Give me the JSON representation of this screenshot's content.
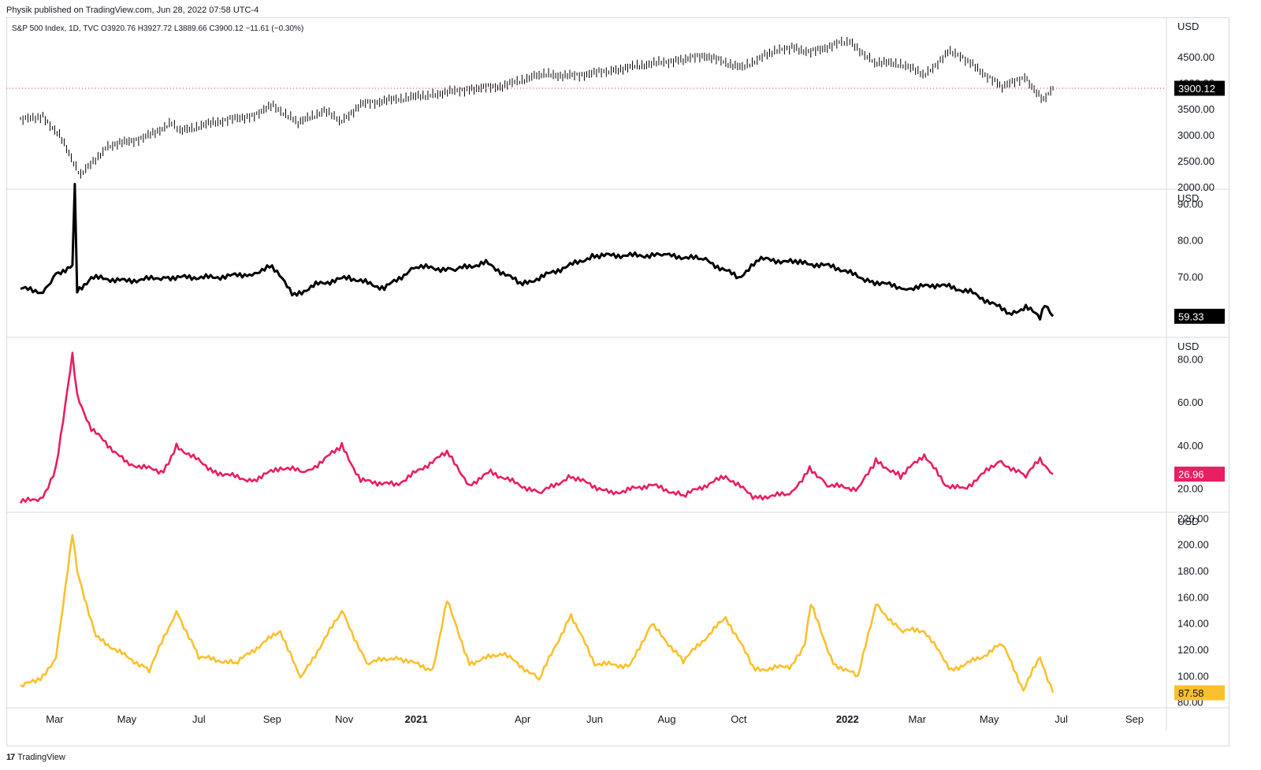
{
  "header": {
    "publisher_line": "Physik published on TradingView.com, Jun 28, 2022 07:58 UTC-4",
    "symbol_line": "S&P 500 Index, 1D, TVC  O3920.76  H3927.72  L3889.66  C3900.12  −11.61 (−0.30%)"
  },
  "footer": {
    "logo_text": "TradingView",
    "logo_mark": "17"
  },
  "colors": {
    "candles": "#000000",
    "line2": "#000000",
    "line3": "#e91e63",
    "line4": "#fbc02d",
    "grid": "#d6d9e0"
  },
  "time_axis": {
    "labels": [
      "Mar",
      "May",
      "Jul",
      "Sep",
      "Nov",
      "2021",
      "Apr",
      "Jun",
      "Aug",
      "Oct",
      "2022",
      "Mar",
      "May",
      "Jul",
      "Sep"
    ],
    "bold": [
      "2021",
      "2022"
    ]
  },
  "chart_data": [
    {
      "type": "candlestick",
      "title": "S&P 500 Index, 1D, TVC",
      "currency": "USD",
      "x": [
        "2020-02-01",
        "2020-02-20",
        "2020-03-05",
        "2020-03-23",
        "2020-04-15",
        "2020-05-15",
        "2020-06-08",
        "2020-06-15",
        "2020-07-15",
        "2020-08-15",
        "2020-09-02",
        "2020-09-23",
        "2020-10-15",
        "2020-10-30",
        "2020-11-15",
        "2020-12-15",
        "2021-01-15",
        "2021-02-15",
        "2021-03-15",
        "2021-04-15",
        "2021-05-15",
        "2021-06-15",
        "2021-07-15",
        "2021-08-15",
        "2021-09-02",
        "2021-10-04",
        "2021-10-25",
        "2021-11-15",
        "2021-12-01",
        "2021-12-27",
        "2022-01-03",
        "2022-01-24",
        "2022-02-15",
        "2022-03-08",
        "2022-03-29",
        "2022-04-15",
        "2022-05-12",
        "2022-05-31",
        "2022-06-16",
        "2022-06-24"
      ],
      "close": [
        3300,
        3370,
        3000,
        2240,
        2800,
        2950,
        3230,
        3080,
        3260,
        3380,
        3580,
        3240,
        3480,
        3270,
        3600,
        3700,
        3790,
        3900,
        3950,
        4170,
        4150,
        4250,
        4370,
        4460,
        4540,
        4300,
        4570,
        4700,
        4600,
        4790,
        4790,
        4410,
        4380,
        4170,
        4630,
        4390,
        3930,
        4130,
        3670,
        3910
      ],
      "last_value": "3900.12",
      "ylim": [
        2000,
        4880
      ],
      "yticks": [
        "4500.00",
        "4000.00",
        "3500.00",
        "3000.00",
        "2500.00",
        "2000.00"
      ]
    },
    {
      "type": "line",
      "currency": "USD",
      "x": [
        "2020-02-01",
        "2020-02-20",
        "2020-03-02",
        "2020-03-16",
        "2020-03-18",
        "2020-03-20",
        "2020-04-01",
        "2020-05-01",
        "2020-06-01",
        "2020-07-15",
        "2020-08-15",
        "2020-09-01",
        "2020-09-20",
        "2020-10-08",
        "2020-11-05",
        "2020-12-05",
        "2021-01-01",
        "2021-02-01",
        "2021-03-01",
        "2021-04-01",
        "2021-05-01",
        "2021-06-01",
        "2021-07-01",
        "2021-08-01",
        "2021-09-01",
        "2021-10-01",
        "2021-10-20",
        "2021-11-20",
        "2021-12-20",
        "2022-01-20",
        "2022-02-20",
        "2022-03-20",
        "2022-04-15",
        "2022-05-20",
        "2022-06-01",
        "2022-06-13",
        "2022-06-17",
        "2022-06-24"
      ],
      "values": [
        67,
        66,
        71,
        73,
        95,
        66,
        70,
        69,
        70,
        70,
        71,
        73,
        65,
        68,
        70,
        67,
        73,
        72,
        74,
        68,
        72,
        76,
        76,
        76,
        75,
        70,
        75,
        74,
        73,
        69,
        67,
        68,
        66,
        60,
        62,
        59,
        63,
        59.33
      ],
      "last_value": "59.33",
      "ylim": [
        54,
        92
      ],
      "yticks": [
        "90.00",
        "80.00",
        "70.00"
      ]
    },
    {
      "type": "line",
      "currency": "USD",
      "x": [
        "2020-02-01",
        "2020-02-20",
        "2020-03-02",
        "2020-03-16",
        "2020-03-20",
        "2020-04-01",
        "2020-05-01",
        "2020-06-01",
        "2020-06-12",
        "2020-07-15",
        "2020-08-15",
        "2020-09-08",
        "2020-10-01",
        "2020-10-30",
        "2020-11-15",
        "2020-12-15",
        "2021-01-27",
        "2021-02-15",
        "2021-03-05",
        "2021-04-15",
        "2021-05-12",
        "2021-06-15",
        "2021-07-19",
        "2021-08-15",
        "2021-09-20",
        "2021-10-15",
        "2021-11-15",
        "2021-11-30",
        "2021-12-15",
        "2022-01-10",
        "2022-01-25",
        "2022-02-15",
        "2022-03-07",
        "2022-03-25",
        "2022-04-10",
        "2022-05-09",
        "2022-06-01",
        "2022-06-13",
        "2022-06-24"
      ],
      "values": [
        14,
        16,
        30,
        82,
        63,
        48,
        32,
        28,
        40,
        28,
        24,
        30,
        28,
        40,
        24,
        22,
        37,
        22,
        28,
        18,
        26,
        18,
        22,
        17,
        26,
        16,
        18,
        30,
        22,
        20,
        33,
        26,
        36,
        22,
        20,
        33,
        26,
        34,
        26.96
      ],
      "last_value": "26.96",
      "ylim": [
        10,
        86
      ],
      "yticks": [
        "80.00",
        "60.00",
        "40.00",
        "20.00"
      ]
    },
    {
      "type": "line",
      "currency": "USD",
      "x": [
        "2020-02-01",
        "2020-02-20",
        "2020-03-02",
        "2020-03-16",
        "2020-03-20",
        "2020-04-05",
        "2020-05-01",
        "2020-05-20",
        "2020-06-12",
        "2020-07-01",
        "2020-08-01",
        "2020-09-08",
        "2020-09-25",
        "2020-10-30",
        "2020-11-20",
        "2020-12-15",
        "2021-01-15",
        "2021-01-27",
        "2021-02-15",
        "2021-03-15",
        "2021-04-15",
        "2021-05-12",
        "2021-06-01",
        "2021-07-01",
        "2021-07-19",
        "2021-08-15",
        "2021-09-20",
        "2021-10-15",
        "2021-11-15",
        "2021-11-26",
        "2021-12-01",
        "2021-12-20",
        "2022-01-10",
        "2022-01-25",
        "2022-02-15",
        "2022-03-07",
        "2022-03-30",
        "2022-04-25",
        "2022-05-12",
        "2022-05-30",
        "2022-06-13",
        "2022-06-24"
      ],
      "values": [
        92,
        100,
        115,
        208,
        180,
        130,
        115,
        105,
        150,
        115,
        110,
        135,
        98,
        150,
        110,
        115,
        105,
        158,
        110,
        118,
        98,
        147,
        110,
        108,
        140,
        112,
        145,
        105,
        108,
        125,
        155,
        110,
        100,
        155,
        135,
        135,
        105,
        115,
        125,
        90,
        115,
        87.58
      ],
      "last_value": "87.58",
      "ylim": [
        78,
        222
      ],
      "yticks": [
        "220.00",
        "200.00",
        "180.00",
        "160.00",
        "140.00",
        "120.00",
        "100.00",
        "80.00"
      ]
    }
  ]
}
